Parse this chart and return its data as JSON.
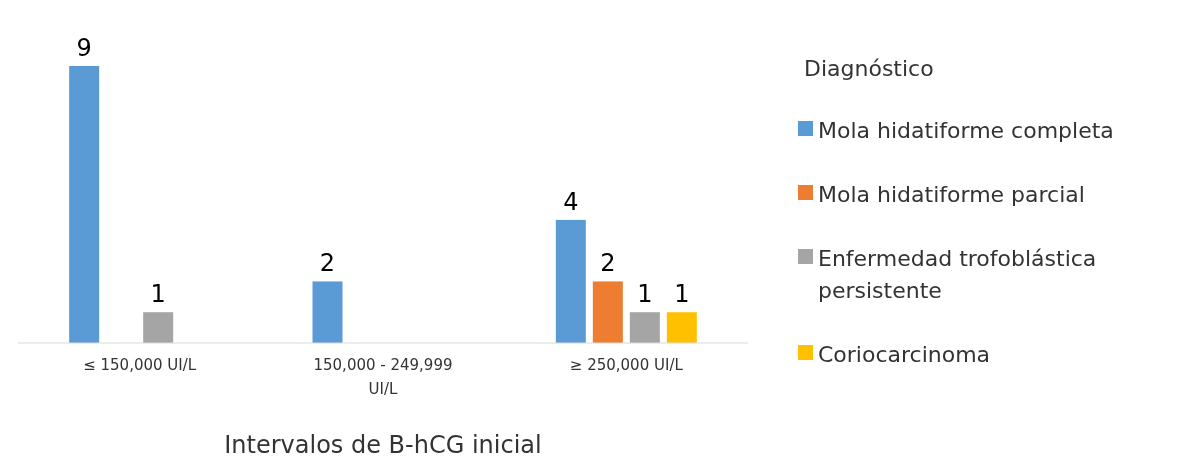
{
  "chart_data": {
    "type": "bar",
    "categories": [
      "≤ 150,000 UI/L",
      "150,000 - 249,999 UI/L",
      "≥ 250,000 UI/L"
    ],
    "series": [
      {
        "name": "Mola hidatiforme completa",
        "color": "#5b9bd5",
        "values": [
          9,
          2,
          4
        ]
      },
      {
        "name": "Mola hidatiforme parcial",
        "color": "#ed7d31",
        "values": [
          null,
          null,
          2
        ]
      },
      {
        "name": "Enfermedad trofoblástica persistente",
        "color": "#a5a5a5",
        "values": [
          1,
          null,
          1
        ]
      },
      {
        "name": "Coriocarcinoma",
        "color": "#ffc000",
        "values": [
          null,
          null,
          1
        ]
      }
    ],
    "xlabel": "Intervalos de B-hCG inicial",
    "legend_title": "Diagnóstico",
    "legend": "right",
    "data_labels": true
  }
}
